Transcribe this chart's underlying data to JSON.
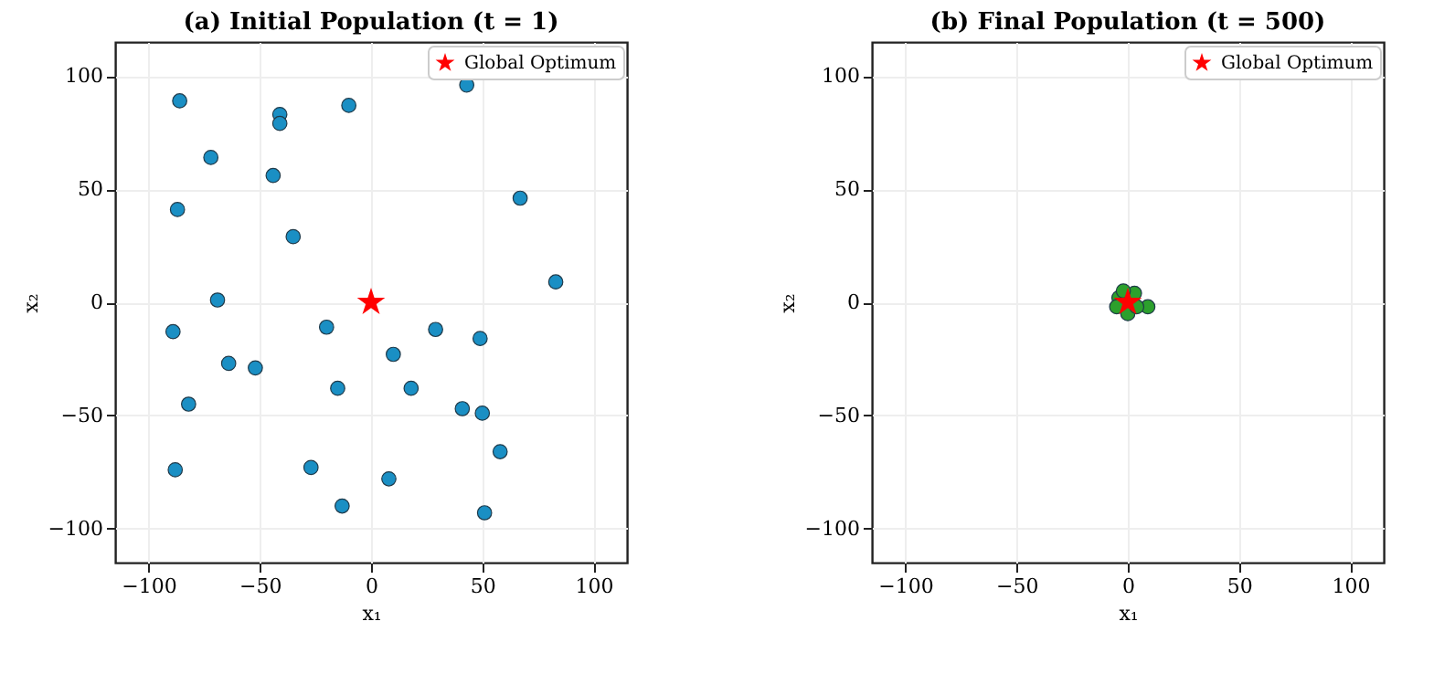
{
  "chart_data": [
    {
      "type": "scatter",
      "title": "(a) Initial Population (t = 1)",
      "xlabel": "x₁",
      "ylabel": "x₂",
      "xlim": [
        -115,
        115
      ],
      "ylim": [
        -115,
        115
      ],
      "xticks": [
        -100,
        -50,
        0,
        50,
        100
      ],
      "yticks": [
        -100,
        -50,
        0,
        50,
        100
      ],
      "grid": true,
      "legend": "top right",
      "series": [
        {
          "color": "#1a8fc4",
          "marker": "circle",
          "x": [
            -86,
            -41,
            -41,
            -10,
            43,
            -72,
            -44,
            -87,
            67,
            -35,
            83,
            -69,
            -89,
            -20,
            29,
            49,
            10,
            -64,
            -52,
            -15,
            18,
            -82,
            41,
            50,
            58,
            -27,
            -88,
            8,
            -13,
            51
          ],
          "values": [
            89,
            83,
            79,
            87,
            96,
            64,
            56,
            41,
            46,
            29,
            9,
            1,
            -13,
            -11,
            -12,
            -16,
            -23,
            -27,
            -29,
            -38,
            -38,
            -45,
            -47,
            -49,
            -66,
            -73,
            -74,
            -78,
            -90,
            -93
          ]
        },
        {
          "name": "Global Optimum",
          "color": "#ff0000",
          "marker": "star",
          "x": [
            0
          ],
          "values": [
            0
          ]
        }
      ]
    },
    {
      "type": "scatter",
      "title": "(b) Final Population (t = 500)",
      "xlabel": "x₁",
      "ylabel": "x₂",
      "xlim": [
        -115,
        115
      ],
      "ylim": [
        -115,
        115
      ],
      "xticks": [
        -100,
        -50,
        0,
        50,
        100
      ],
      "yticks": [
        -100,
        -50,
        0,
        50,
        100
      ],
      "grid": true,
      "legend": "top right",
      "series": [
        {
          "color": "#2ca02c",
          "marker": "circle",
          "x": [
            3,
            9,
            0,
            -4,
            -5,
            4,
            -2
          ],
          "values": [
            4,
            -2,
            -5,
            2,
            -2,
            -2,
            5
          ]
        },
        {
          "name": "Global Optimum",
          "color": "#ff0000",
          "marker": "star",
          "x": [
            0
          ],
          "values": [
            0
          ]
        }
      ]
    }
  ]
}
